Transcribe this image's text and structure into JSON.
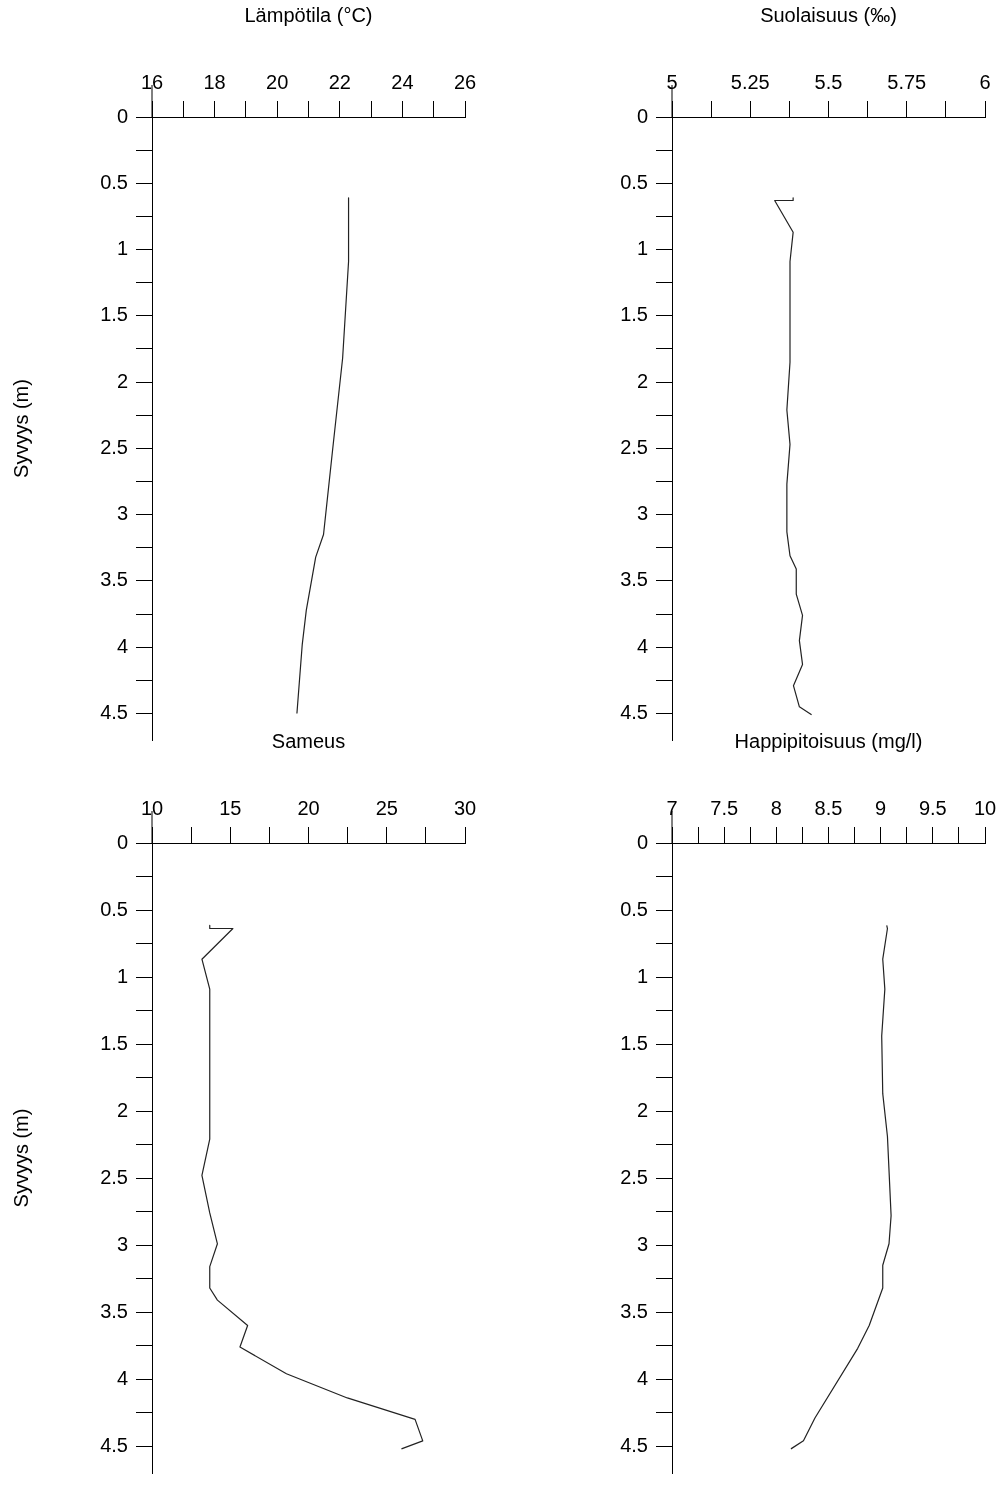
{
  "chart_data": [
    {
      "type": "line",
      "xlabel": "Lämpötila (°C)",
      "ylabel": "Syvyys (m)",
      "xlim": [
        16,
        26
      ],
      "xticks": [
        16,
        {
          "value": 17,
          "label": null
        },
        18,
        {
          "value": 19,
          "label": null
        },
        20,
        {
          "value": 21,
          "label": null
        },
        22,
        {
          "value": 23,
          "label": null
        },
        24,
        {
          "value": 25,
          "label": null
        },
        26
      ],
      "ylim": [
        4.7,
        0
      ],
      "yticks": [
        0,
        {
          "value": 0.25,
          "label": null
        },
        0.5,
        {
          "value": 0.75,
          "label": null
        },
        1,
        {
          "value": 1.25,
          "label": null
        },
        1.5,
        {
          "value": 1.75,
          "label": null
        },
        2,
        {
          "value": 2.25,
          "label": null
        },
        2.5,
        {
          "value": 2.75,
          "label": null
        },
        3,
        {
          "value": 3.25,
          "label": null
        },
        3.5,
        {
          "value": 3.75,
          "label": null
        },
        4,
        {
          "value": 4.25,
          "label": null
        },
        4.5
      ],
      "legend": false,
      "grid": false,
      "series": [
        {
          "color": "#222222",
          "x": [
            22.28,
            22.28,
            22.09,
            21.78,
            21.48,
            21.23,
            20.93,
            20.8,
            20.63
          ],
          "values": [
            0.61,
            1.09,
            1.82,
            2.49,
            3.15,
            3.32,
            3.72,
            3.98,
            4.5
          ]
        }
      ]
    },
    {
      "type": "line",
      "xlabel": "Suolaisuus (‰)",
      "xlim": [
        5,
        6
      ],
      "xticks": [
        5,
        {
          "value": 5.125,
          "label": null
        },
        5.25,
        {
          "value": 5.375,
          "label": null
        },
        5.5,
        {
          "value": 5.625,
          "label": null
        },
        5.75,
        {
          "value": 5.875,
          "label": null
        },
        6
      ],
      "ylim": [
        4.7,
        0
      ],
      "yticks": [
        0,
        {
          "value": 0.25,
          "label": null
        },
        0.5,
        {
          "value": 0.75,
          "label": null
        },
        1,
        {
          "value": 1.25,
          "label": null
        },
        1.5,
        {
          "value": 1.75,
          "label": null
        },
        2,
        {
          "value": 2.25,
          "label": null
        },
        2.5,
        {
          "value": 2.75,
          "label": null
        },
        3,
        {
          "value": 3.25,
          "label": null
        },
        3.5,
        {
          "value": 3.75,
          "label": null
        },
        4,
        {
          "value": 4.25,
          "label": null
        },
        4.5
      ],
      "legend": false,
      "grid": false,
      "series": [
        {
          "color": "#222222",
          "x": [
            5.387,
            5.387,
            5.328,
            5.387,
            5.377,
            5.377,
            5.367,
            5.377,
            5.367,
            5.367,
            5.377,
            5.397,
            5.397,
            5.417,
            5.407,
            5.417,
            5.388,
            5.407,
            5.446
          ],
          "values": [
            0.61,
            0.63,
            0.63,
            0.87,
            1.09,
            1.85,
            2.21,
            2.47,
            2.77,
            3.13,
            3.31,
            3.41,
            3.6,
            3.76,
            3.95,
            4.13,
            4.29,
            4.45,
            4.51
          ]
        }
      ]
    },
    {
      "type": "line",
      "xlabel": "Sameus",
      "ylabel": "Syvyys (m)",
      "xlim": [
        10,
        30
      ],
      "xticks": [
        10,
        {
          "value": 12.5,
          "label": null
        },
        15,
        {
          "value": 17.5,
          "label": null
        },
        20,
        {
          "value": 22.5,
          "label": null
        },
        25,
        {
          "value": 27.5,
          "label": null
        },
        30
      ],
      "ylim": [
        4.7,
        0
      ],
      "yticks": [
        0,
        {
          "value": 0.25,
          "label": null
        },
        0.5,
        {
          "value": 0.75,
          "label": null
        },
        1,
        {
          "value": 1.25,
          "label": null
        },
        1.5,
        {
          "value": 1.75,
          "label": null
        },
        2,
        {
          "value": 2.25,
          "label": null
        },
        2.5,
        {
          "value": 2.75,
          "label": null
        },
        3,
        {
          "value": 3.25,
          "label": null
        },
        3.5,
        {
          "value": 3.75,
          "label": null
        },
        4,
        {
          "value": 4.25,
          "label": null
        },
        4.5
      ],
      "legend": false,
      "grid": false,
      "series": [
        {
          "color": "#222222",
          "x": [
            13.69,
            13.69,
            15.17,
            13.19,
            13.69,
            13.69,
            13.19,
            13.69,
            14.18,
            13.69,
            13.69,
            14.18,
            16.11,
            15.62,
            18.59,
            22.48,
            26.81,
            27.3,
            25.94
          ],
          "values": [
            0.615,
            0.638,
            0.638,
            0.867,
            1.09,
            2.21,
            2.48,
            2.76,
            2.99,
            3.16,
            3.32,
            3.41,
            3.6,
            3.76,
            3.96,
            4.14,
            4.3,
            4.46,
            4.52
          ]
        }
      ]
    },
    {
      "type": "line",
      "xlabel": "Happipitoisuus (mg/l)",
      "xlim": [
        7,
        10
      ],
      "xticks": [
        7,
        {
          "value": 7.25,
          "label": null
        },
        7.5,
        {
          "value": 7.75,
          "label": null
        },
        8,
        {
          "value": 8.25,
          "label": null
        },
        8.5,
        {
          "value": 8.75,
          "label": null
        },
        9,
        {
          "value": 9.25,
          "label": null
        },
        9.5,
        {
          "value": 9.75,
          "label": null
        },
        10
      ],
      "ylim": [
        4.7,
        0
      ],
      "yticks": [
        0,
        {
          "value": 0.25,
          "label": null
        },
        0.5,
        {
          "value": 0.75,
          "label": null
        },
        1,
        {
          "value": 1.25,
          "label": null
        },
        1.5,
        {
          "value": 1.75,
          "label": null
        },
        2,
        {
          "value": 2.25,
          "label": null
        },
        2.5,
        {
          "value": 2.75,
          "label": null
        },
        3,
        {
          "value": 3.25,
          "label": null
        },
        3.5,
        {
          "value": 3.75,
          "label": null
        },
        4,
        {
          "value": 4.25,
          "label": null
        },
        4.5
      ],
      "legend": false,
      "grid": false,
      "series": [
        {
          "color": "#222222",
          "x": [
            9.058,
            9.065,
            9.02,
            9.04,
            9.01,
            9.02,
            9.065,
            9.1,
            9.08,
            9.02,
            9.02,
            8.89,
            8.78,
            8.37,
            8.26,
            8.14
          ],
          "values": [
            0.615,
            0.638,
            0.867,
            1.09,
            1.44,
            1.87,
            2.19,
            2.78,
            2.99,
            3.15,
            3.32,
            3.6,
            3.77,
            4.29,
            4.46,
            4.52
          ]
        }
      ]
    }
  ]
}
